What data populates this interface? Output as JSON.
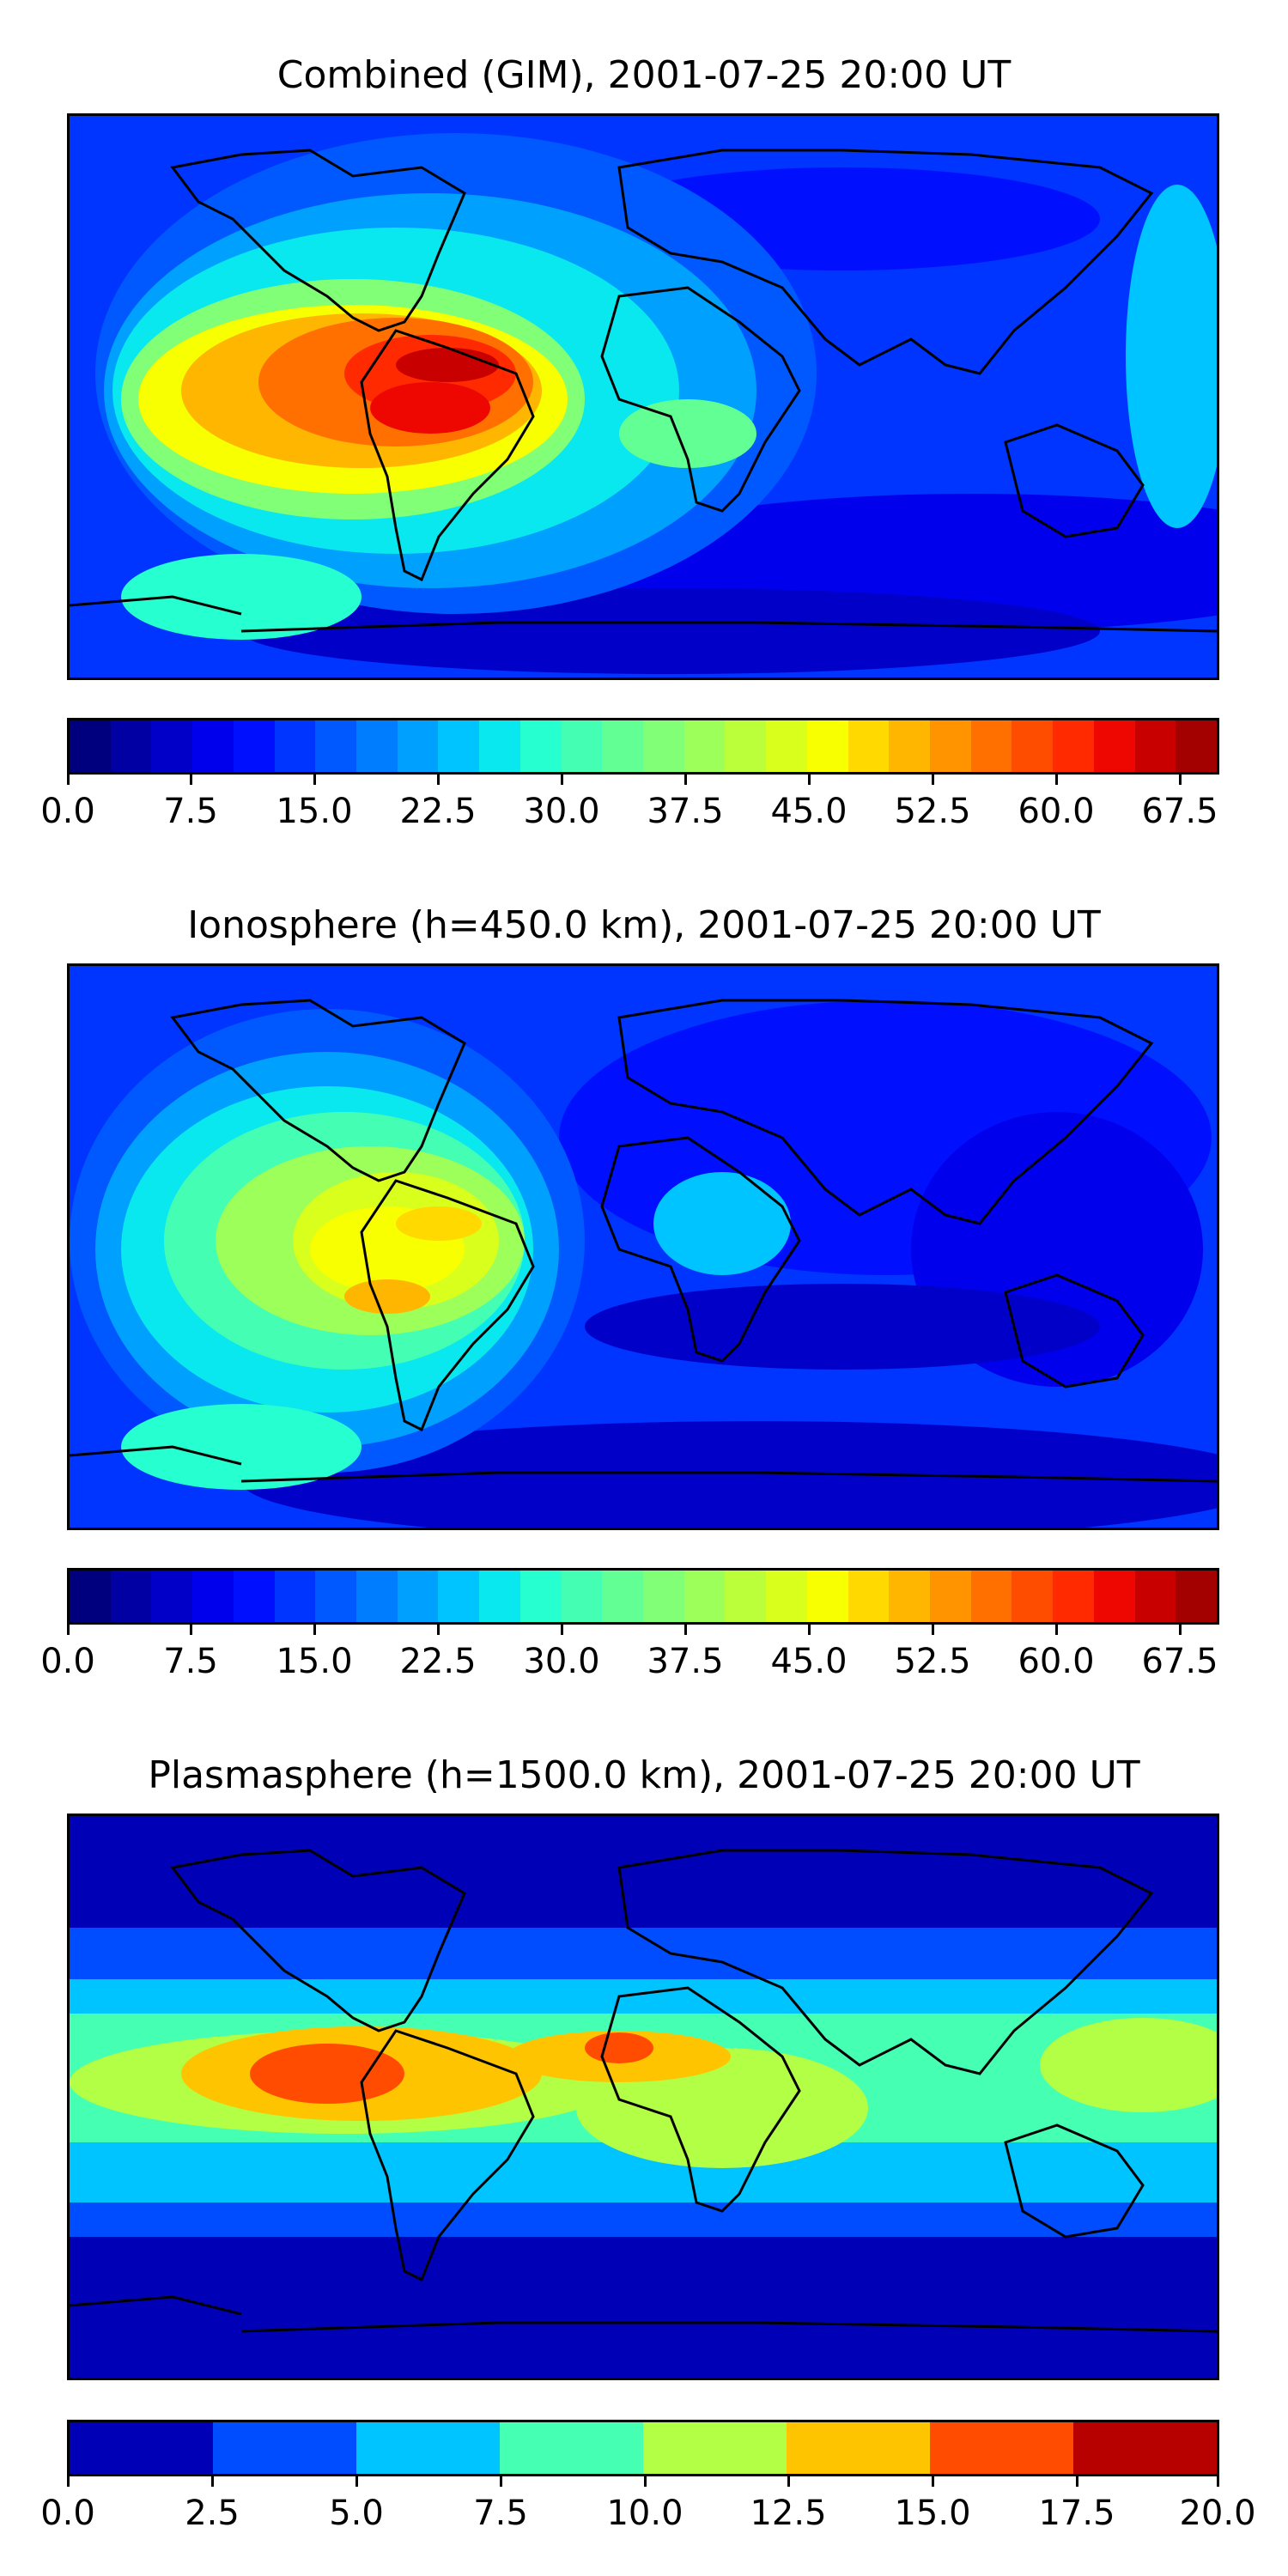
{
  "panels": [
    {
      "title": "Combined (GIM), 2001-07-25 20:00 UT",
      "colorbar": {
        "min": 0.0,
        "max": 70.0,
        "levels": 28,
        "ticks": [
          "0.0",
          "7.5",
          "15.0",
          "22.5",
          "30.0",
          "37.5",
          "45.0",
          "52.5",
          "60.0",
          "67.5"
        ],
        "tick_values": [
          0,
          7.5,
          15,
          22.5,
          30,
          37.5,
          45,
          52.5,
          60,
          67.5
        ]
      }
    },
    {
      "title": "Ionosphere  (h=450.0 km), 2001-07-25 20:00 UT",
      "colorbar": {
        "min": 0.0,
        "max": 70.0,
        "levels": 28,
        "ticks": [
          "0.0",
          "7.5",
          "15.0",
          "22.5",
          "30.0",
          "37.5",
          "45.0",
          "52.5",
          "60.0",
          "67.5"
        ],
        "tick_values": [
          0,
          7.5,
          15,
          22.5,
          30,
          37.5,
          45,
          52.5,
          60,
          67.5
        ]
      }
    },
    {
      "title": "Plasmasphere (h=1500.0 km), 2001-07-25 20:00 UT",
      "colorbar": {
        "min": 0.0,
        "max": 20.0,
        "levels": 8,
        "ticks": [
          "0.0",
          "2.5",
          "5.0",
          "7.5",
          "10.0",
          "12.5",
          "15.0",
          "17.5",
          "20.0"
        ],
        "tick_values": [
          0,
          2.5,
          5,
          7.5,
          10,
          12.5,
          15,
          17.5,
          20
        ]
      }
    }
  ],
  "colors": {
    "jet28": [
      "#00007f",
      "#0000a3",
      "#0000c8",
      "#0000ed",
      "#0010ff",
      "#0034ff",
      "#0058ff",
      "#007cff",
      "#00a0ff",
      "#00c4ff",
      "#09e8ee",
      "#26ffd0",
      "#44ffb3",
      "#62ff95",
      "#80ff77",
      "#9dff59",
      "#bbff3b",
      "#d9ff1d",
      "#f7ff00",
      "#ffd900",
      "#ffb600",
      "#ff9300",
      "#ff7000",
      "#ff4d00",
      "#ff2a00",
      "#ed0700",
      "#c80000",
      "#a30000"
    ],
    "jet8": [
      "#0000b7",
      "#004cff",
      "#00c4ff",
      "#45ffb2",
      "#b2ff45",
      "#ffc400",
      "#ff4c00",
      "#b70000"
    ],
    "coastline": "#000000"
  }
}
